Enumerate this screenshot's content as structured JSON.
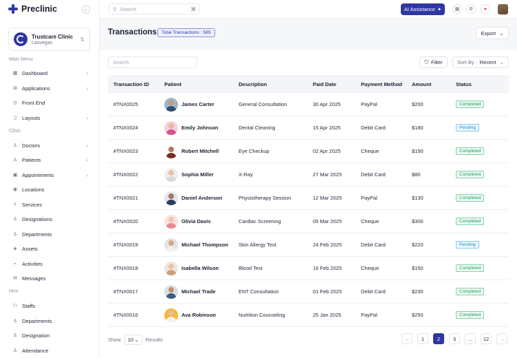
{
  "app": {
    "name": "Preclinic"
  },
  "clinic": {
    "name": "Trustcare Clinic",
    "location": "Lasvegas"
  },
  "sidebar": {
    "sections": {
      "main": "Main Menu",
      "clinic": "Clinic",
      "hrm": "Hrm"
    },
    "items": [
      {
        "label": "Dashboard",
        "icon": "dashboard-icon",
        "chevron": true
      },
      {
        "label": "Applications",
        "icon": "apps-icon",
        "chevron": true
      },
      {
        "label": "Front End",
        "icon": "globe-icon",
        "chevron": false
      },
      {
        "label": "Layouts",
        "icon": "layout-icon",
        "chevron": true
      },
      {
        "label": "Doctors",
        "icon": "doctor-icon",
        "chevron": true
      },
      {
        "label": "Patients",
        "icon": "patient-icon",
        "chevron": true
      },
      {
        "label": "Appointments",
        "icon": "calendar-icon",
        "chevron": true
      },
      {
        "label": "Locations",
        "icon": "location-icon",
        "chevron": false
      },
      {
        "label": "Services",
        "icon": "services-icon",
        "chevron": false
      },
      {
        "label": "Designations",
        "icon": "designation-icon",
        "chevron": false
      },
      {
        "label": "Departments",
        "icon": "department-icon",
        "chevron": false
      },
      {
        "label": "Assets",
        "icon": "assets-icon",
        "chevron": false
      },
      {
        "label": "Activities",
        "icon": "activity-icon",
        "chevron": false
      },
      {
        "label": "Messages",
        "icon": "message-icon",
        "chevron": false
      },
      {
        "label": "Staffs",
        "icon": "staff-icon",
        "chevron": false
      },
      {
        "label": "Departments",
        "icon": "department-icon",
        "chevron": false
      },
      {
        "label": "Designation",
        "icon": "designation-icon",
        "chevron": false
      },
      {
        "label": "Attendance",
        "icon": "attendance-icon",
        "chevron": false
      }
    ]
  },
  "topbar": {
    "search_placeholder": "Search",
    "shortcut": "⌘",
    "ai_label": "AI Assistance"
  },
  "page": {
    "title": "Transactions",
    "total_badge": "Total Transactions : 565",
    "export_label": "Export",
    "search_placeholder": "Search",
    "filter_label": "Filter",
    "sort_prefix": "Sort By :",
    "sort_value": "Recent"
  },
  "table": {
    "columns": [
      "Transaction ID",
      "Patient",
      "Description",
      "Paid  Date",
      "Payment Method",
      "Amount",
      "Status"
    ],
    "rows": [
      {
        "id": "#TNX0025",
        "patient": "James Carter",
        "description": "General Consultation",
        "date": "30 Apr 2025",
        "method": "PayPal",
        "amount": "$200",
        "status": "Completed",
        "skin": "#c69a7a",
        "cloth": "#2f4f6f",
        "bg": "#9eb6c9"
      },
      {
        "id": "#TNX0024",
        "patient": "Emily Johnson",
        "description": "Dental Cleaning",
        "date": "15 Apr 2025",
        "method": "Debit Card",
        "amount": "$180",
        "status": "Pending",
        "skin": "#e8b9a0",
        "cloth": "#d94f8a",
        "bg": "#f4d2de"
      },
      {
        "id": "#TNX0023",
        "patient": "Robert Mitchell",
        "description": "Eye Checkup",
        "date": "02 Apr 2025",
        "method": "Cheque",
        "amount": "$150",
        "status": "Completed",
        "skin": "#b07a5a",
        "cloth": "#7a2f24",
        "bg": "#ffffff"
      },
      {
        "id": "#TNX0022",
        "patient": "Sophia Miller",
        "description": "X-Ray",
        "date": "27 Mar 2025",
        "method": "Debit Card",
        "amount": "$80",
        "status": "Completed",
        "skin": "#e6c0a8",
        "cloth": "#d9d9d9",
        "bg": "#eeeeee"
      },
      {
        "id": "#TNX0021",
        "patient": "Daniel Anderson",
        "description": "Physiotherapy Session",
        "date": "12 Mar 2025",
        "method": "PayPal",
        "amount": "$130",
        "status": "Completed",
        "skin": "#a87458",
        "cloth": "#2c3e57",
        "bg": "#dfe6ee"
      },
      {
        "id": "#TNX0020",
        "patient": "Olivia Davis",
        "description": "Cardiac Screening",
        "date": "05 Mar 2025",
        "method": "Cheque",
        "amount": "$300",
        "status": "Completed",
        "skin": "#efc6b2",
        "cloth": "#e98a94",
        "bg": "#fde2e4"
      },
      {
        "id": "#TNX0019",
        "patient": "Michael Thompson",
        "description": "Skin Allergy Test",
        "date": "24 Feb 2025",
        "method": "Debit Card",
        "amount": "$220",
        "status": "Pending",
        "skin": "#d7a788",
        "cloth": "#f2f2f2",
        "bg": "#e4e4e4"
      },
      {
        "id": "#TNX0018",
        "patient": "Isabella Wilson",
        "description": "Blood Test",
        "date": "16 Feb 2025",
        "method": "Cheque",
        "amount": "$150",
        "status": "Completed",
        "skin": "#ebc3a8",
        "cloth": "#c9a17e",
        "bg": "#efe7df"
      },
      {
        "id": "#TNX0017",
        "patient": "Michael Trade",
        "description": "ENT Consultation",
        "date": "01 Feb 2025",
        "method": "Debit Card",
        "amount": "$230",
        "status": "Completed",
        "skin": "#c48e6c",
        "cloth": "#3f5f7a",
        "bg": "#d6e2ea"
      },
      {
        "id": "#TNX0016",
        "patient": "Ava Robinson",
        "description": "Nutrition Counseling",
        "date": "25 Jan 2025",
        "method": "PayPal",
        "amount": "$250",
        "status": "Completed",
        "skin": "#e9bd9a",
        "cloth": "#f2f2f2",
        "bg": "#f6b93b"
      }
    ]
  },
  "footer": {
    "show_label": "Show",
    "page_size": "10",
    "results_label": "Results",
    "pages": [
      "1",
      "2",
      "3",
      "...",
      "12"
    ],
    "current_page": "2",
    "prev": "←",
    "next": "→"
  },
  "colors": {
    "primary": "#2e37a4",
    "completed": "#1a9e5c",
    "pending": "#1b8bd1"
  }
}
